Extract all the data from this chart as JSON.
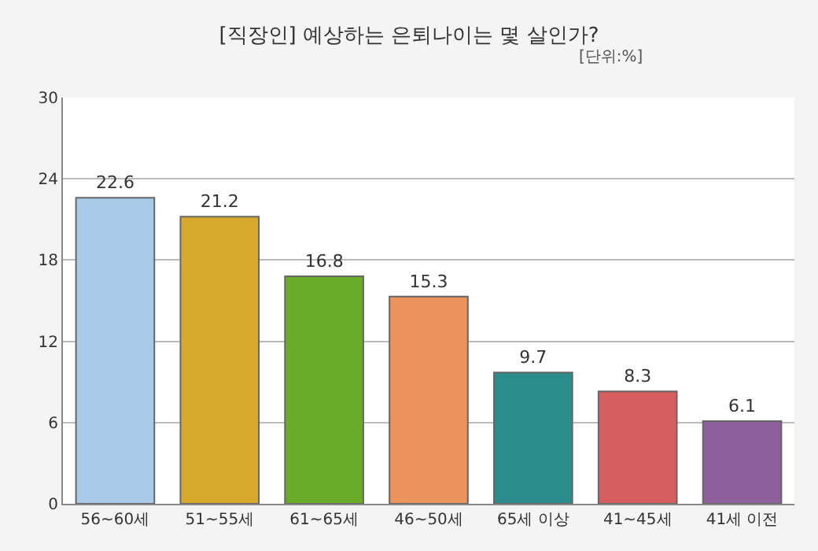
{
  "chart_data": {
    "type": "bar",
    "title": "[직장인] 예상하는 은퇴나이는 몇 살인가?",
    "subtitle": "[단위:%]",
    "categories": [
      "56~60세",
      "51~55세",
      "61~65세",
      "46~50세",
      "65세 이상",
      "41~45세",
      "41세 이전"
    ],
    "values": [
      22.6,
      21.2,
      16.8,
      15.3,
      9.7,
      8.3,
      6.1
    ],
    "colors": [
      "#a9cbe9",
      "#d6a92c",
      "#6aab2b",
      "#ea935c",
      "#2a8d8c",
      "#d65e5e",
      "#8d5f9c"
    ],
    "ylim": [
      0,
      30
    ],
    "yticks": [
      0,
      6,
      12,
      18,
      24,
      30
    ],
    "grid": "y",
    "data_labels": true
  }
}
